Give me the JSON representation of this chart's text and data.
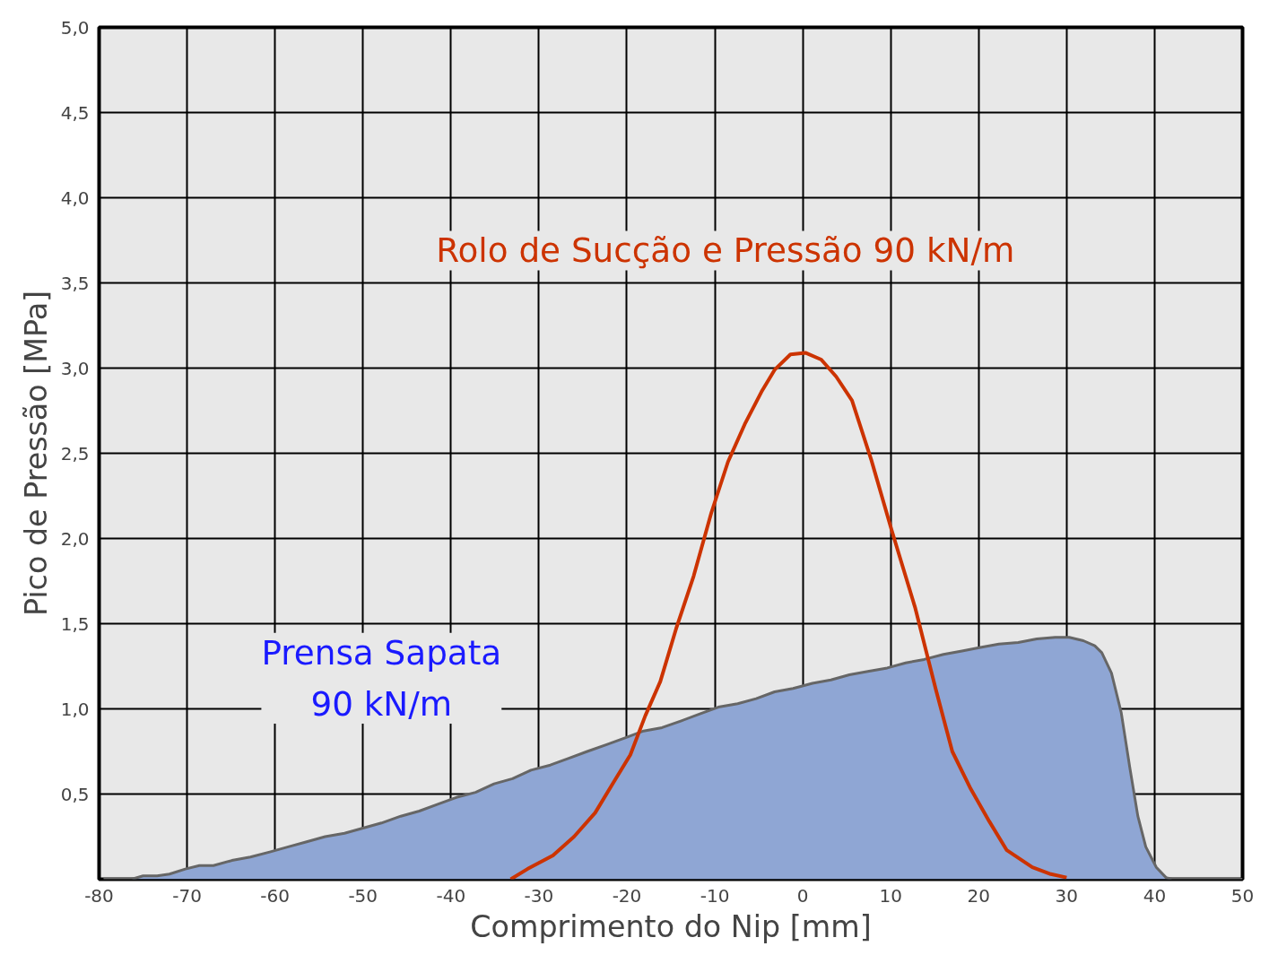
{
  "chart_data": {
    "type": "line",
    "xlabel": "Comprimento do Nip [mm]",
    "ylabel": "Pico de Pressão [MPa]",
    "xlim": [
      -80,
      50
    ],
    "ylim": [
      0,
      5
    ],
    "xticks": [
      -80,
      -70,
      -60,
      -50,
      -40,
      -30,
      -20,
      -10,
      0,
      10,
      20,
      30,
      40,
      50
    ],
    "yticks": [
      {
        "value": 0,
        "label": null
      },
      {
        "value": 0.5,
        "label": "0,5"
      },
      {
        "value": 1,
        "label": "1,0"
      },
      {
        "value": 1.5,
        "label": "1,5"
      },
      {
        "value": 2,
        "label": "2,0"
      },
      {
        "value": 2.5,
        "label": "2,5"
      },
      {
        "value": 3,
        "label": "3,0"
      },
      {
        "value": 3.5,
        "label": "3,5"
      },
      {
        "value": 4,
        "label": "4,0"
      },
      {
        "value": 4.5,
        "label": "4,5"
      },
      {
        "value": 5,
        "label": "5,0"
      }
    ],
    "grid": true,
    "series": [
      {
        "type": "area",
        "name": "Prensa Sapata\n90 kN/m",
        "color": "#8fa6d4",
        "x": [
          -79.5,
          -76.3,
          -75,
          -73.4,
          -72,
          -70.2,
          -68.6,
          -67,
          -64.9,
          -62.8,
          -60.6,
          -58.5,
          -56.4,
          -54.3,
          -52.1,
          -50,
          -47.9,
          -45.7,
          -43.6,
          -41.5,
          -39.4,
          -37.2,
          -35.1,
          -33,
          -30.9,
          -28.7,
          -26.6,
          -24.5,
          -22.3,
          -20.2,
          -18.1,
          -16,
          -13.8,
          -11.7,
          -9.6,
          -7.4,
          -5.3,
          -3.2,
          -1.1,
          1.1,
          3.2,
          5.3,
          7.4,
          9.6,
          11.7,
          13.8,
          16,
          18.1,
          20.2,
          22.3,
          24.5,
          26.6,
          28.7,
          30.3,
          31.9,
          33.2,
          34,
          35.1,
          36.2,
          37.2,
          38.1,
          39,
          40.2,
          41.3,
          42,
          50
        ],
        "values": [
          0,
          0,
          0.02,
          0.02,
          0.03,
          0.06,
          0.08,
          0.08,
          0.11,
          0.13,
          0.16,
          0.19,
          0.22,
          0.25,
          0.27,
          0.3,
          0.33,
          0.37,
          0.4,
          0.44,
          0.48,
          0.51,
          0.56,
          0.59,
          0.64,
          0.67,
          0.71,
          0.75,
          0.79,
          0.83,
          0.87,
          0.89,
          0.93,
          0.97,
          1.01,
          1.03,
          1.06,
          1.1,
          1.12,
          1.15,
          1.17,
          1.2,
          1.22,
          1.24,
          1.27,
          1.29,
          1.32,
          1.34,
          1.36,
          1.38,
          1.39,
          1.41,
          1.42,
          1.42,
          1.4,
          1.37,
          1.33,
          1.21,
          0.98,
          0.65,
          0.37,
          0.19,
          0.07,
          0.01,
          0,
          0
        ]
      },
      {
        "name": "Rolo de Sucção e Pressão 90 kN/m",
        "color": "#cc3300",
        "x": [
          -33.2,
          -31.3,
          -28.4,
          -26,
          -23.6,
          -21.5,
          -19.6,
          -17.9,
          -16.2,
          -14.4,
          -12.4,
          -10.4,
          -8.5,
          -6.6,
          -4.7,
          -3.2,
          -1.4,
          0.3,
          2.1,
          3.8,
          5.6,
          7.8,
          10.1,
          12.8,
          15.1,
          17,
          19.1,
          21.2,
          23.2,
          26.1,
          28.2,
          30
        ],
        "values": [
          0,
          0.06,
          0.14,
          0.25,
          0.39,
          0.57,
          0.73,
          0.96,
          1.16,
          1.47,
          1.78,
          2.15,
          2.45,
          2.67,
          2.86,
          2.99,
          3.08,
          3.09,
          3.05,
          2.95,
          2.81,
          2.46,
          2.05,
          1.59,
          1.12,
          0.75,
          0.53,
          0.34,
          0.17,
          0.07,
          0.03,
          0.01
        ]
      }
    ]
  }
}
